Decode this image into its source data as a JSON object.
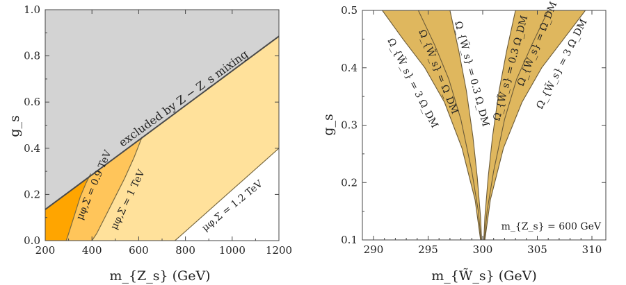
{
  "chart_data": [
    {
      "type": "area",
      "xlabel": "m_{Z_s} (GeV)",
      "ylabel": "g_s",
      "xlim": [
        200,
        1200
      ],
      "ylim": [
        0,
        1.0
      ],
      "xticks": [
        "200",
        "400",
        "600",
        "800",
        "1000",
        "1200"
      ],
      "yticks": [
        "0.0",
        "0.2",
        "0.4",
        "0.6",
        "0.8",
        "1.0"
      ],
      "excluded_label": "excluded by Z − Z_s mixing",
      "colors": {
        "excluded": "#d3d3d3",
        "mu09": "#ffa500",
        "mu1": "#ffc55a",
        "mu12": "#ffe19b",
        "line": "#4a4a4a",
        "contour": "#7a6a40"
      },
      "exclusion_boundary": {
        "x": [
          200,
          1200
        ],
        "y": [
          0.135,
          0.885
        ]
      },
      "series": [
        {
          "name": "μφ,Σ = 0.9 TeV",
          "label": "μ_{φ,Σ} = 0.9 TeV",
          "x": [
            290,
            300,
            325,
            350,
            375,
            395
          ],
          "y": [
            0.0,
            0.03,
            0.11,
            0.19,
            0.25,
            0.29
          ]
        },
        {
          "name": "μφ,Σ = 1 TeV",
          "label": "μ_{φ,Σ} = 1 TeV",
          "x": [
            400,
            420,
            460,
            500,
            540,
            580,
            615
          ],
          "y": [
            0.0,
            0.03,
            0.11,
            0.19,
            0.27,
            0.36,
            0.45
          ]
        },
        {
          "name": "μφ,Σ = 1.2 TeV",
          "label": "μ_{φ,Σ} = 1.2 TeV",
          "x": [
            755,
            800,
            850,
            900,
            950,
            1000,
            1050,
            1100,
            1150,
            1200
          ],
          "y": [
            0.0,
            0.04,
            0.085,
            0.13,
            0.175,
            0.22,
            0.265,
            0.31,
            0.355,
            0.4
          ]
        }
      ]
    },
    {
      "type": "area",
      "xlabel": "m_{W̃_s} (GeV)",
      "ylabel": "g_s",
      "xlim": [
        289,
        310
      ],
      "ylim": [
        0.09,
        0.5
      ],
      "xticks": [
        "290",
        "295",
        "300",
        "305",
        "310"
      ],
      "yticks": [
        "0.1",
        "0.2",
        "0.3",
        "0.4",
        "0.5"
      ],
      "annotation": "m_{Z_s} = 600 GeV",
      "colors": {
        "band": "#dfb75e",
        "edge": "#6a5a38"
      },
      "bands": [
        {
          "name": "left band",
          "outer_label": "Ω_{W̃_s} = 3 Ω_DM",
          "middle_label": "Ω_{W̃_s} = Ω_DM",
          "inner_label": "Ω_{W̃_s} = 0.3 Ω_DM",
          "outer": {
            "x": [
              290.8,
              292.7,
              294.7,
              296.5,
              298.1,
              299.3,
              299.8
            ],
            "y": [
              0.5,
              0.45,
              0.4,
              0.34,
              0.26,
              0.17,
              0.1
            ]
          },
          "middle": {
            "x": [
              294.1,
              295.6,
              296.9,
              298.0,
              299.0,
              299.6,
              299.85
            ],
            "y": [
              0.5,
              0.44,
              0.38,
              0.31,
              0.22,
              0.15,
              0.1
            ]
          },
          "inner": {
            "x": [
              297.0,
              297.8,
              298.5,
              299.1,
              299.5,
              299.8,
              299.9
            ],
            "y": [
              0.5,
              0.43,
              0.36,
              0.28,
              0.21,
              0.14,
              0.1
            ]
          }
        },
        {
          "name": "right band",
          "outer_label": "Ω_{W̃_s} = 3 Ω_DM",
          "middle_label": "Ω_{W̃_s} = Ω_DM",
          "inner_label": "Ω_{W̃_s} = 0.3 Ω_DM",
          "outer": {
            "x": [
              309.4,
              307.4,
              305.4,
              303.6,
              301.9,
              300.7,
              300.2
            ],
            "y": [
              0.5,
              0.45,
              0.4,
              0.34,
              0.26,
              0.17,
              0.1
            ]
          },
          "middle": {
            "x": [
              306.0,
              304.5,
              303.1,
              302.0,
              301.0,
              300.4,
              300.15
            ],
            "y": [
              0.5,
              0.44,
              0.38,
              0.31,
              0.22,
              0.15,
              0.1
            ]
          },
          "inner": {
            "x": [
              303.0,
              302.2,
              301.5,
              300.9,
              300.5,
              300.2,
              300.1
            ],
            "y": [
              0.5,
              0.43,
              0.36,
              0.28,
              0.21,
              0.14,
              0.1
            ]
          }
        }
      ]
    }
  ]
}
